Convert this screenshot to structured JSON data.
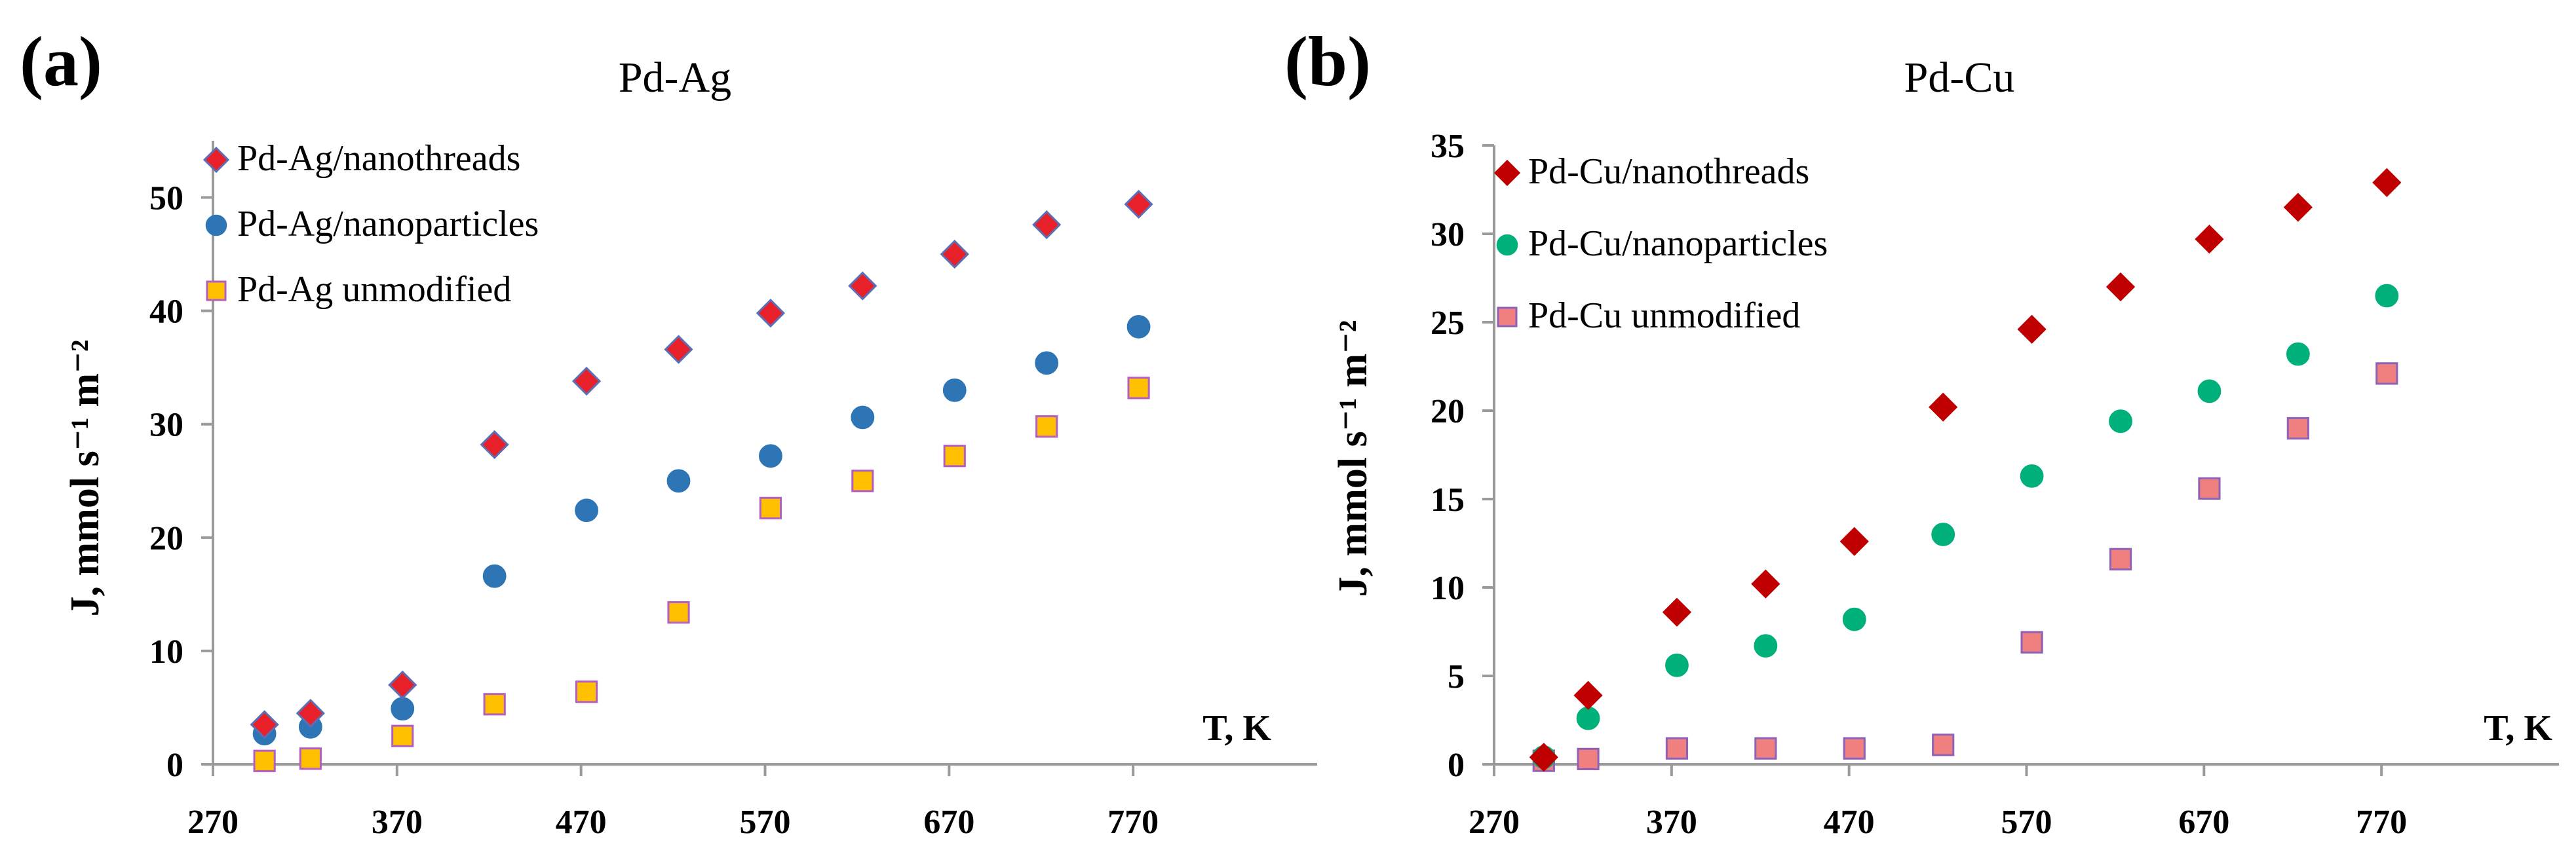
{
  "colors": {
    "axis": "#9a9a9a",
    "text": "#000000"
  },
  "chart_data": [
    {
      "type": "scatter",
      "panel_label": "(a)",
      "title": "Pd-Ag",
      "xlabel": "T, K",
      "ylabel": "J, mmol s⁻¹ m⁻²",
      "xlim": [
        270,
        870
      ],
      "ylim": [
        0,
        55
      ],
      "xticks": [
        270,
        370,
        470,
        570,
        670,
        770
      ],
      "yticks": [
        0,
        10,
        20,
        30,
        40,
        50
      ],
      "grid": false,
      "legend_position": "top-left",
      "x": [
        298,
        323,
        373,
        423,
        473,
        523,
        573,
        623,
        673,
        723,
        773
      ],
      "series": [
        {
          "name": "Pd-Ag/nanothreads",
          "marker": "diamond",
          "color": "#e8202a",
          "edge": "#5b6fb5",
          "values": [
            3.5,
            4.5,
            7.0,
            28.2,
            33.8,
            36.6,
            39.8,
            42.2,
            45.0,
            47.6,
            49.4
          ]
        },
        {
          "name": "Pd-Ag/nanoparticles",
          "marker": "circle",
          "color": "#2e75b6",
          "edge": "#2e75b6",
          "values": [
            2.7,
            3.3,
            4.9,
            16.6,
            22.4,
            25.0,
            27.2,
            30.6,
            33.0,
            35.4,
            38.6
          ]
        },
        {
          "name": "Pd-Ag unmodified",
          "marker": "square",
          "color": "#ffc000",
          "edge": "#b55ec2",
          "values": [
            0.3,
            0.5,
            2.5,
            5.3,
            6.4,
            13.4,
            22.6,
            25.0,
            27.2,
            29.8,
            33.2
          ]
        }
      ]
    },
    {
      "type": "scatter",
      "panel_label": "(b)",
      "title": "Pd-Cu",
      "xlabel": "T, K",
      "ylabel": "J, mmol s⁻¹ m⁻²",
      "xlim": [
        270,
        870
      ],
      "ylim": [
        0,
        35
      ],
      "xticks": [
        270,
        370,
        470,
        570,
        670,
        770
      ],
      "yticks": [
        0,
        5,
        10,
        15,
        20,
        25,
        30,
        35
      ],
      "grid": false,
      "legend_position": "top-left",
      "x": [
        298,
        323,
        373,
        423,
        473,
        523,
        573,
        623,
        673,
        723,
        773
      ],
      "series": [
        {
          "name": "Pd-Cu/nanothreads",
          "marker": "diamond",
          "color": "#c00000",
          "edge": "#c00000",
          "values": [
            0.4,
            3.9,
            8.6,
            10.2,
            12.6,
            20.2,
            24.6,
            27.0,
            29.7,
            31.5,
            32.9
          ]
        },
        {
          "name": "Pd-Cu/nanoparticles",
          "marker": "circle",
          "color": "#00b07a",
          "edge": "#00b07a",
          "values": [
            0.4,
            2.6,
            5.6,
            6.7,
            8.2,
            13.0,
            16.3,
            19.4,
            21.1,
            23.2,
            26.5
          ]
        },
        {
          "name": "Pd-Cu unmodified",
          "marker": "square",
          "color": "#f08080",
          "edge": "#8d62b8",
          "values": [
            0.2,
            0.3,
            0.9,
            0.9,
            0.9,
            1.1,
            6.9,
            11.6,
            15.6,
            19.0,
            22.1
          ]
        }
      ]
    }
  ]
}
